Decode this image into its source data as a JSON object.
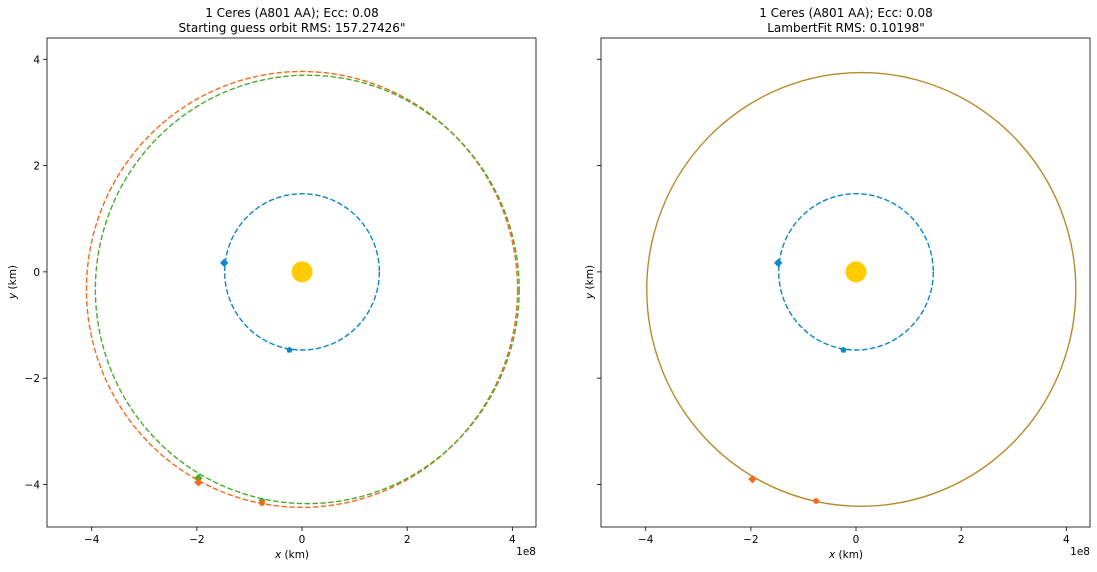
{
  "chart_data": [
    {
      "type": "scatter",
      "title": "1 Ceres (A801 AA); Ecc: 0.08",
      "subtitle": "Starting guess orbit RMS: 157.27426\"",
      "xlabel_var": "x",
      "xlabel_unit": " (km)",
      "ylabel_var": "y",
      "ylabel_unit": " (km)",
      "x_exponent": "1e8",
      "xlim": [
        -4.85,
        4.45
      ],
      "ylim": [
        -4.8,
        4.4
      ],
      "xticks": [
        -4,
        -2,
        0,
        2,
        4
      ],
      "xtick_labels": [
        "−4",
        "−2",
        "0",
        "2",
        "4"
      ],
      "yticks": [
        -4,
        -2,
        0,
        2,
        4
      ],
      "ytick_labels": [
        "−4",
        "−2",
        "0",
        "2",
        "4"
      ],
      "show_yticklabels": true,
      "grid": false,
      "sun": {
        "x": 0,
        "y": 0,
        "color": "#ffcc00"
      },
      "orbits": [
        {
          "color": "#0a87c8",
          "cx": 0,
          "cy": 0,
          "r": 1.47,
          "dashed": true
        },
        {
          "color": "#f26a1b",
          "cx": 0.0,
          "cy": -0.33,
          "r": 4.1,
          "dashed": true
        },
        {
          "color": "#4aaa2a",
          "cx": 0.1,
          "cy": -0.33,
          "r": 4.03,
          "dashed": true
        }
      ],
      "markers": [
        {
          "x": -1.48,
          "y": 0.17,
          "color": "#0a87c8",
          "shape": "diamond"
        },
        {
          "x": -0.24,
          "y": -1.47,
          "color": "#0a87c8",
          "shape": "pentagon"
        },
        {
          "x": -1.97,
          "y": -3.88,
          "color": "#4aaa2a",
          "shape": "diamond"
        },
        {
          "x": -1.97,
          "y": -3.96,
          "color": "#f26a1b",
          "shape": "diamond"
        },
        {
          "x": -0.76,
          "y": -4.31,
          "color": "#4aaa2a",
          "shape": "pentagon"
        },
        {
          "x": -0.76,
          "y": -4.35,
          "color": "#f26a1b",
          "shape": "pentagon"
        }
      ]
    },
    {
      "type": "scatter",
      "title": "1 Ceres (A801 AA); Ecc: 0.08",
      "subtitle": "LambertFit RMS: 0.10198\"",
      "xlabel_var": "x",
      "xlabel_unit": " (km)",
      "ylabel_var": "y",
      "ylabel_unit": " (km)",
      "x_exponent": "1e8",
      "xlim": [
        -4.85,
        4.45
      ],
      "ylim": [
        -4.8,
        4.4
      ],
      "xticks": [
        -4,
        -2,
        0,
        2,
        4
      ],
      "xtick_labels": [
        "−4",
        "−2",
        "0",
        "2",
        "4"
      ],
      "yticks": [
        -4,
        -2,
        0,
        2,
        4
      ],
      "ytick_labels": [
        "",
        "",
        "",
        "",
        ""
      ],
      "show_yticklabels": false,
      "grid": false,
      "sun": {
        "x": 0,
        "y": 0,
        "color": "#ffcc00"
      },
      "orbits": [
        {
          "color": "#0a87c8",
          "cx": 0,
          "cy": 0,
          "r": 1.47,
          "dashed": true
        },
        {
          "color": "#b58a2a",
          "cx": 0.1,
          "cy": -0.33,
          "r": 4.08,
          "dashed": false
        }
      ],
      "markers": [
        {
          "x": -1.48,
          "y": 0.17,
          "color": "#0a87c8",
          "shape": "diamond"
        },
        {
          "x": -0.24,
          "y": -1.47,
          "color": "#0a87c8",
          "shape": "pentagon"
        },
        {
          "x": -1.97,
          "y": -3.9,
          "color": "#f26a1b",
          "shape": "diamond"
        },
        {
          "x": -0.76,
          "y": -4.31,
          "color": "#f26a1b",
          "shape": "pentagon"
        }
      ]
    }
  ]
}
